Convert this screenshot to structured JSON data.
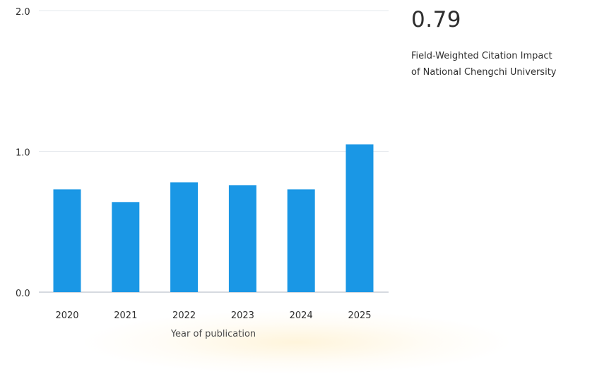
{
  "metric": {
    "value": "0.79",
    "caption_line1": "Field-Weighted Citation Impact",
    "caption_line2": "of National Chengchi University"
  },
  "colors": {
    "bar": "#1a97e5",
    "gridline": "#e6e9ee",
    "axis_line": "#c8cdd5",
    "text": "#2e2e2e"
  },
  "chart_data": {
    "type": "bar",
    "categories": [
      "2020",
      "2021",
      "2022",
      "2023",
      "2024",
      "2025"
    ],
    "values": [
      0.73,
      0.64,
      0.78,
      0.76,
      0.73,
      1.05
    ],
    "xlabel": "Year of publication",
    "ylabel": "",
    "ylim": [
      0,
      2.0
    ],
    "yticks": [
      "0.0",
      "1.0",
      "2.0"
    ],
    "grid": true,
    "legend": "none"
  }
}
